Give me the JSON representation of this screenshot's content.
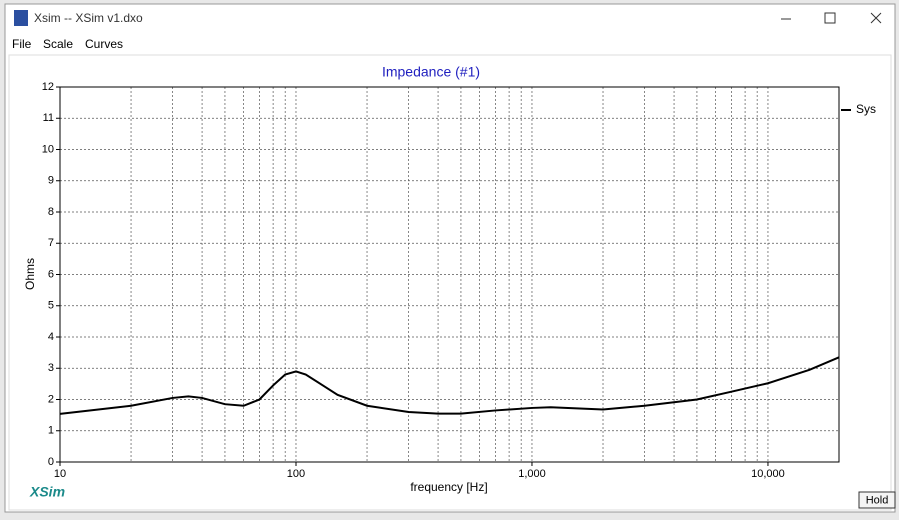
{
  "window": {
    "title": "Xsim -- XSim v1.dxo",
    "menu": [
      "File",
      "Scale",
      "Curves"
    ],
    "brand": "XSim",
    "button": "Hold"
  },
  "chart_data": {
    "type": "line",
    "title": "Impedance (#1)",
    "x_label": "frequency [Hz]",
    "y_label": "Ohms",
    "x": [
      10,
      20,
      30,
      35,
      40,
      50,
      60,
      70,
      80,
      90,
      100,
      110,
      130,
      150,
      200,
      300,
      400,
      500,
      700,
      1000,
      1200,
      2000,
      3000,
      5000,
      7000,
      10000,
      15000,
      20000
    ],
    "series": [
      {
        "name": "Sys",
        "color": "#000000",
        "values": [
          1.54,
          1.8,
          2.05,
          2.1,
          2.05,
          1.85,
          1.8,
          2.0,
          2.45,
          2.8,
          2.9,
          2.8,
          2.45,
          2.15,
          1.8,
          1.6,
          1.55,
          1.55,
          1.65,
          1.73,
          1.75,
          1.68,
          1.8,
          2.0,
          2.25,
          2.52,
          2.95,
          3.35
        ]
      }
    ],
    "x_log": true,
    "xlim": [
      10,
      20000
    ],
    "xticks": [
      10,
      100,
      {
        "value": 1000,
        "label": "1,000"
      },
      {
        "value": 10000,
        "label": "10,000"
      }
    ],
    "xminorticks": [
      20,
      30,
      40,
      50,
      60,
      70,
      80,
      90,
      200,
      300,
      400,
      500,
      600,
      700,
      800,
      900,
      2000,
      3000,
      4000,
      5000,
      6000,
      7000,
      8000,
      9000
    ],
    "ylim": [
      0,
      12
    ],
    "yticks": [
      0,
      1,
      2,
      3,
      4,
      5,
      6,
      7,
      8,
      9,
      10,
      11,
      12
    ],
    "grid": true,
    "legend": "right"
  }
}
